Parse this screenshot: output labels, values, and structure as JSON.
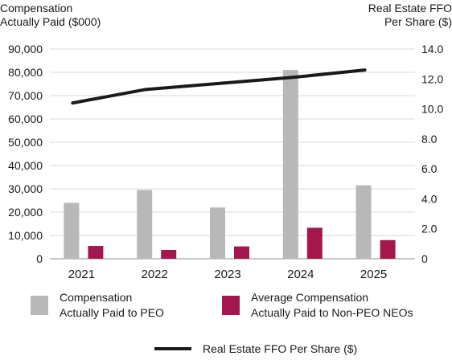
{
  "y_left_title": [
    "Compensation",
    "Actually Paid ($000)"
  ],
  "y_right_title": [
    "Real Estate  FFO",
    "Per Share ($)"
  ],
  "colors": {
    "peo": "#b8b8b8",
    "neo": "#a3174d",
    "ffo": "#1a1a1a",
    "grid": "#d9d9d9"
  },
  "legend": {
    "peo": [
      "Compensation",
      "Actually Paid to PEO"
    ],
    "neo": [
      "Average Compensation",
      "Actually Paid to Non-PEO NEOs"
    ],
    "ffo": "Real Estate FFO Per Share ($)"
  },
  "chart_data": {
    "type": "bar",
    "categories": [
      "2021",
      "2022",
      "2023",
      "2024",
      "2025"
    ],
    "series": [
      {
        "name": "Compensation Actually Paid to PEO",
        "axis": "left",
        "type": "bar",
        "values": [
          24000,
          29500,
          22000,
          81000,
          31500
        ]
      },
      {
        "name": "Average Compensation Actually Paid to Non-PEO NEOs",
        "axis": "left",
        "type": "bar",
        "values": [
          5500,
          3800,
          5300,
          13300,
          8000
        ]
      },
      {
        "name": "Real Estate FFO Per Share ($)",
        "axis": "right",
        "type": "line",
        "values": [
          10.4,
          11.3,
          11.7,
          12.1,
          12.6
        ]
      }
    ],
    "y_left": {
      "range": [
        0,
        90000
      ],
      "tick_labels": [
        "0",
        "10,000",
        "20,000",
        "30,000",
        "40,000",
        "50,000",
        "60,000",
        "70,000",
        "80,000",
        "90,000"
      ]
    },
    "y_right": {
      "range": [
        0,
        14
      ],
      "tick_labels": [
        "0",
        "2.0",
        "4.0",
        "6.0",
        "8.0",
        "10.0",
        "12.0",
        "14.0"
      ]
    },
    "grid": true,
    "legend_position": "bottom"
  }
}
